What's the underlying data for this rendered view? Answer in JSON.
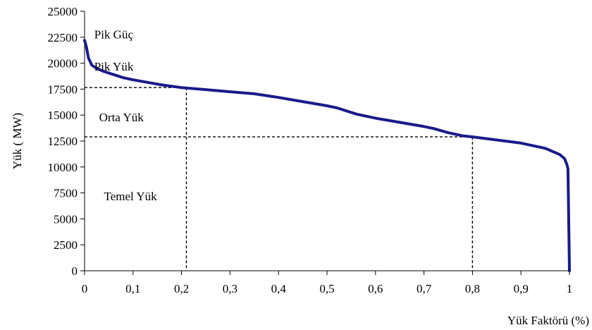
{
  "chart_data": {
    "type": "line",
    "title": "",
    "xlabel": "Yük Faktörü (%)",
    "ylabel": "Yük ( MW)",
    "xlim": [
      0,
      1
    ],
    "ylim": [
      0,
      25000
    ],
    "x_ticks": [
      0,
      0.1,
      0.2,
      0.3,
      0.4,
      0.5,
      0.6,
      0.7,
      0.8,
      0.9,
      1
    ],
    "x_tick_labels": [
      "0",
      "0,1",
      "0,2",
      "0,3",
      "0,4",
      "0,5",
      "0,6",
      "0,7",
      "0,8",
      "0,9",
      "1"
    ],
    "y_ticks": [
      0,
      2500,
      5000,
      7500,
      10000,
      12500,
      15000,
      17500,
      20000,
      22500,
      25000
    ],
    "y_tick_labels": [
      "0",
      "2500",
      "5000",
      "7500",
      "10000",
      "12500",
      "15000",
      "17500",
      "20000",
      "22500",
      "25000"
    ],
    "grid": false,
    "series": [
      {
        "color": "#1a1a8c",
        "x": [
          0,
          0.004,
          0.008,
          0.015,
          0.025,
          0.04,
          0.06,
          0.08,
          0.1,
          0.13,
          0.16,
          0.2,
          0.25,
          0.3,
          0.35,
          0.4,
          0.45,
          0.5,
          0.52,
          0.56,
          0.6,
          0.65,
          0.7,
          0.72,
          0.75,
          0.78,
          0.8,
          0.85,
          0.9,
          0.92,
          0.95,
          0.98,
          0.99,
          0.995,
          0.997,
          1.0
        ],
        "y": [
          22200,
          21500,
          20500,
          19800,
          19500,
          19200,
          18900,
          18600,
          18400,
          18150,
          17900,
          17650,
          17450,
          17250,
          17050,
          16700,
          16300,
          15900,
          15700,
          15100,
          14700,
          14300,
          13900,
          13700,
          13300,
          13000,
          12900,
          12600,
          12300,
          12100,
          11800,
          11200,
          10800,
          10200,
          9800,
          0
        ]
      }
    ],
    "reference_lines": [
      {
        "y": 17650,
        "x_end": 0.21
      },
      {
        "y": 12900,
        "x_end": 0.8
      }
    ],
    "annotations": [
      {
        "text": "Pik Güç",
        "x": 0.02,
        "y": 22400
      },
      {
        "text": "Pik Yük",
        "x": 0.02,
        "y": 19300
      },
      {
        "text": "Orta Yük",
        "x": 0.03,
        "y": 14400
      },
      {
        "text": "Temel Yük",
        "x": 0.04,
        "y": 6800
      }
    ]
  }
}
